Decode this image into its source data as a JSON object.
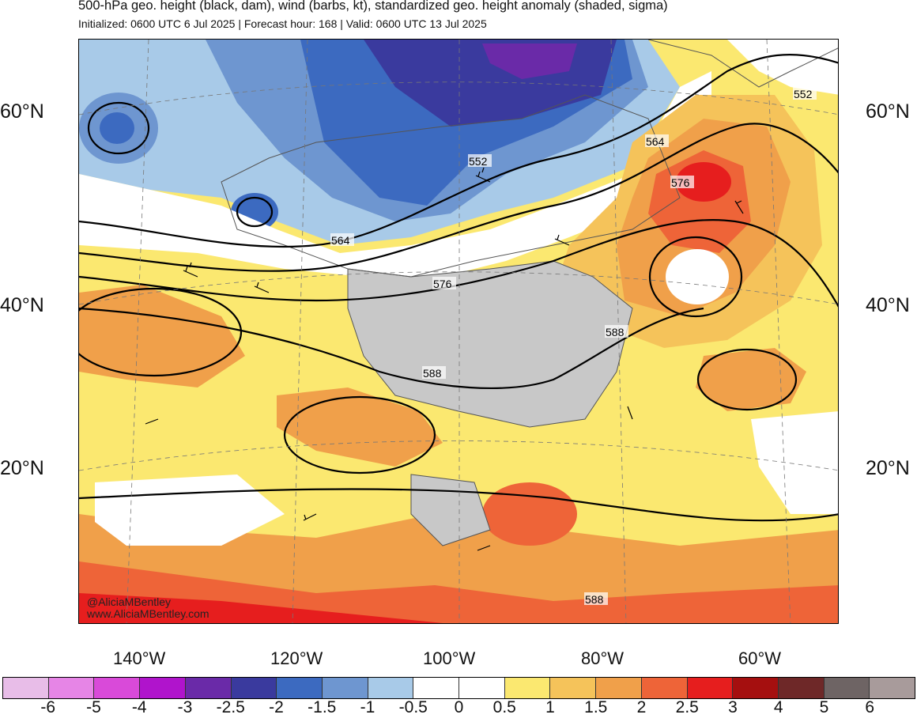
{
  "header": {
    "title": "500-hPa geo. height (black, dam), wind (barbs, kt), standardized geo. height anomaly (shaded, sigma)",
    "subtitle": "Initialized: 0600 UTC 6 Jul 2025 | Forecast hour: 168 | Valid: 0600 UTC 13 Jul 2025"
  },
  "map": {
    "latitude_labels": [
      "60°N",
      "40°N",
      "20°N"
    ],
    "longitude_labels": [
      "140°W",
      "120°W",
      "100°W",
      "80°W",
      "60°W"
    ],
    "contour_labels": [
      "552",
      "552",
      "564",
      "564",
      "576",
      "576",
      "588",
      "588",
      "588"
    ],
    "credit_handle": "@AliciaMBentley",
    "credit_url": "www.AliciaMBentley.com",
    "colors": {
      "land": "#c8c8c8",
      "coast": "#555555",
      "contour": "#000000"
    }
  },
  "colorbar": {
    "colors": [
      "#e8bde8",
      "#e685e6",
      "#d94ad9",
      "#b014cc",
      "#6a2aa8",
      "#3a3a9e",
      "#3c6ac0",
      "#6e96d0",
      "#a8cae8",
      "#ffffff",
      "#ffffff",
      "#fbe870",
      "#f5c35a",
      "#f0a04a",
      "#ee6438",
      "#e61e1e",
      "#a50f0f",
      "#6e2828",
      "#6e6464",
      "#a89b9b"
    ],
    "labels": [
      "-6",
      "-5",
      "-4",
      "-3",
      "-2.5",
      "-2",
      "-1.5",
      "-1",
      "-0.5",
      "0",
      "0.5",
      "1",
      "1.5",
      "2",
      "2.5",
      "3",
      "4",
      "5",
      "6"
    ]
  }
}
